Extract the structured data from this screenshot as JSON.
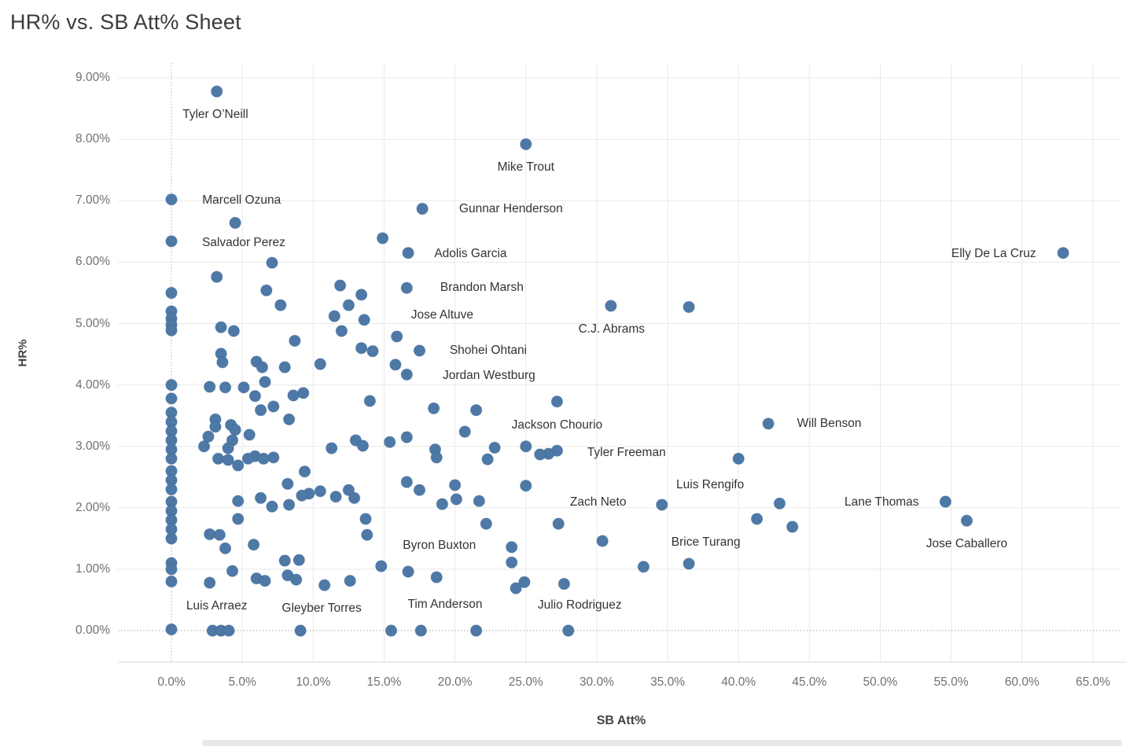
{
  "title": "HR% vs. SB Att% Sheet",
  "chart_data": {
    "type": "scatter",
    "title": "HR% vs. SB Att% Sheet",
    "xlabel": "SB Att%",
    "ylabel": "HR%",
    "xlim": [
      -3.8,
      66.9
    ],
    "ylim": [
      -0.55,
      9.25
    ],
    "grid": true,
    "marker_color": "#4e79a7",
    "marker_edge_color": "#2e5a87",
    "grid_color": "#e9e9e9",
    "zero_line_color": "#bcbcbc",
    "tick_text_color": "#717171",
    "label_text_color": "#333333",
    "x_ticks": [
      {
        "v": 0,
        "label": "0.0%"
      },
      {
        "v": 5,
        "label": "5.0%"
      },
      {
        "v": 10,
        "label": "10.0%"
      },
      {
        "v": 15,
        "label": "15.0%"
      },
      {
        "v": 20,
        "label": "20.0%"
      },
      {
        "v": 25,
        "label": "25.0%"
      },
      {
        "v": 30,
        "label": "30.0%"
      },
      {
        "v": 35,
        "label": "35.0%"
      },
      {
        "v": 40,
        "label": "40.0%"
      },
      {
        "v": 45,
        "label": "45.0%"
      },
      {
        "v": 50,
        "label": "50.0%"
      },
      {
        "v": 55,
        "label": "55.0%"
      },
      {
        "v": 60,
        "label": "60.0%"
      },
      {
        "v": 65,
        "label": "65.0%"
      }
    ],
    "y_ticks": [
      {
        "v": 0,
        "label": "0.00%"
      },
      {
        "v": 1,
        "label": "1.00%"
      },
      {
        "v": 2,
        "label": "2.00%"
      },
      {
        "v": 3,
        "label": "3.00%"
      },
      {
        "v": 4,
        "label": "4.00%"
      },
      {
        "v": 5,
        "label": "5.00%"
      },
      {
        "v": 6,
        "label": "6.00%"
      },
      {
        "v": 7,
        "label": "7.00%"
      },
      {
        "v": 8,
        "label": "8.00%"
      },
      {
        "v": 9,
        "label": "9.00%"
      }
    ],
    "points": [
      [
        0,
        7.02
      ],
      [
        0,
        6.34
      ],
      [
        0,
        5.5
      ],
      [
        0,
        5.2
      ],
      [
        0,
        5.08
      ],
      [
        0,
        4.98
      ],
      [
        0,
        4.89
      ],
      [
        0,
        4.0
      ],
      [
        0,
        3.78
      ],
      [
        0,
        3.55
      ],
      [
        0,
        3.4
      ],
      [
        0,
        3.25
      ],
      [
        0,
        3.1
      ],
      [
        0,
        2.95
      ],
      [
        0,
        2.8
      ],
      [
        0,
        2.6
      ],
      [
        0,
        2.45
      ],
      [
        0,
        2.3
      ],
      [
        0,
        2.1
      ],
      [
        0,
        1.95
      ],
      [
        0,
        1.8
      ],
      [
        0,
        1.65
      ],
      [
        0,
        1.5
      ],
      [
        0,
        1.1
      ],
      [
        0,
        1.0
      ],
      [
        0,
        0.8
      ],
      [
        0,
        0.02
      ],
      [
        3.2,
        8.78
      ],
      [
        25,
        7.92
      ],
      [
        17.7,
        6.87
      ],
      [
        4.5,
        6.64
      ],
      [
        14.9,
        6.39
      ],
      [
        16.7,
        6.15
      ],
      [
        62.9,
        6.15
      ],
      [
        7.1,
        5.99
      ],
      [
        3.2,
        5.76
      ],
      [
        11.9,
        5.62
      ],
      [
        16.6,
        5.58
      ],
      [
        6.7,
        5.54
      ],
      [
        13.4,
        5.47
      ],
      [
        7.7,
        5.3
      ],
      [
        12.5,
        5.3
      ],
      [
        31,
        5.29
      ],
      [
        36.5,
        5.27
      ],
      [
        11.5,
        5.12
      ],
      [
        13.6,
        5.06
      ],
      [
        3.5,
        4.94
      ],
      [
        4.4,
        4.88
      ],
      [
        12,
        4.88
      ],
      [
        15.9,
        4.79
      ],
      [
        8.7,
        4.72
      ],
      [
        13.4,
        4.6
      ],
      [
        17.5,
        4.56
      ],
      [
        14.2,
        4.55
      ],
      [
        3.5,
        4.51
      ],
      [
        6,
        4.38
      ],
      [
        3.6,
        4.37
      ],
      [
        10.5,
        4.34
      ],
      [
        15.8,
        4.33
      ],
      [
        6.4,
        4.29
      ],
      [
        8,
        4.29
      ],
      [
        16.6,
        4.17
      ],
      [
        6.6,
        4.05
      ],
      [
        2.7,
        3.97
      ],
      [
        3.8,
        3.96
      ],
      [
        5.1,
        3.96
      ],
      [
        9.3,
        3.87
      ],
      [
        8.6,
        3.83
      ],
      [
        5.9,
        3.82
      ],
      [
        14,
        3.74
      ],
      [
        27.2,
        3.73
      ],
      [
        7.2,
        3.65
      ],
      [
        18.5,
        3.62
      ],
      [
        21.5,
        3.59
      ],
      [
        6.3,
        3.59
      ],
      [
        3.1,
        3.44
      ],
      [
        8.3,
        3.44
      ],
      [
        42.1,
        3.37
      ],
      [
        4.2,
        3.35
      ],
      [
        3.1,
        3.32
      ],
      [
        4.5,
        3.27
      ],
      [
        20.7,
        3.24
      ],
      [
        5.5,
        3.19
      ],
      [
        2.6,
        3.16
      ],
      [
        16.6,
        3.15
      ],
      [
        4.3,
        3.1
      ],
      [
        13,
        3.1
      ],
      [
        15.4,
        3.07
      ],
      [
        13.5,
        3.01
      ],
      [
        2.3,
        3.0
      ],
      [
        25,
        3.0
      ],
      [
        22.8,
        2.98
      ],
      [
        4,
        2.97
      ],
      [
        11.3,
        2.97
      ],
      [
        18.6,
        2.95
      ],
      [
        27.2,
        2.93
      ],
      [
        26.6,
        2.88
      ],
      [
        26,
        2.87
      ],
      [
        5.9,
        2.84
      ],
      [
        18.7,
        2.82
      ],
      [
        7.2,
        2.82
      ],
      [
        3.3,
        2.8
      ],
      [
        5.4,
        2.8
      ],
      [
        6.5,
        2.8
      ],
      [
        40,
        2.8
      ],
      [
        22.3,
        2.79
      ],
      [
        4,
        2.78
      ],
      [
        4.7,
        2.69
      ],
      [
        9.4,
        2.59
      ],
      [
        16.6,
        2.42
      ],
      [
        8.2,
        2.39
      ],
      [
        20,
        2.37
      ],
      [
        25,
        2.36
      ],
      [
        17.5,
        2.29
      ],
      [
        12.5,
        2.29
      ],
      [
        10.5,
        2.27
      ],
      [
        9.7,
        2.23
      ],
      [
        9.2,
        2.2
      ],
      [
        11.6,
        2.18
      ],
      [
        6.3,
        2.16
      ],
      [
        12.9,
        2.16
      ],
      [
        20.1,
        2.14
      ],
      [
        4.7,
        2.11
      ],
      [
        21.7,
        2.11
      ],
      [
        54.6,
        2.1
      ],
      [
        42.9,
        2.07
      ],
      [
        19.1,
        2.06
      ],
      [
        34.6,
        2.05
      ],
      [
        8.3,
        2.05
      ],
      [
        7.1,
        2.02
      ],
      [
        13.7,
        1.82
      ],
      [
        4.7,
        1.82
      ],
      [
        41.3,
        1.82
      ],
      [
        56.1,
        1.79
      ],
      [
        22.2,
        1.74
      ],
      [
        27.3,
        1.74
      ],
      [
        43.8,
        1.69
      ],
      [
        2.7,
        1.57
      ],
      [
        3.4,
        1.56
      ],
      [
        13.8,
        1.56
      ],
      [
        30.4,
        1.46
      ],
      [
        5.8,
        1.4
      ],
      [
        24,
        1.36
      ],
      [
        3.8,
        1.34
      ],
      [
        9,
        1.15
      ],
      [
        8,
        1.14
      ],
      [
        24,
        1.11
      ],
      [
        36.5,
        1.09
      ],
      [
        14.8,
        1.05
      ],
      [
        33.3,
        1.04
      ],
      [
        4.3,
        0.97
      ],
      [
        16.7,
        0.96
      ],
      [
        8.2,
        0.9
      ],
      [
        18.7,
        0.87
      ],
      [
        6,
        0.85
      ],
      [
        8.8,
        0.83
      ],
      [
        6.6,
        0.81
      ],
      [
        12.6,
        0.81
      ],
      [
        24.9,
        0.79
      ],
      [
        2.7,
        0.78
      ],
      [
        27.7,
        0.76
      ],
      [
        10.8,
        0.74
      ],
      [
        24.3,
        0.69
      ],
      [
        2.9,
        0
      ],
      [
        3.5,
        0
      ],
      [
        4.05,
        0
      ],
      [
        9.1,
        0
      ],
      [
        15.5,
        0
      ],
      [
        17.6,
        0
      ],
      [
        21.5,
        0
      ],
      [
        28,
        0
      ]
    ],
    "annotations": [
      {
        "text": "Tyler O’Neill",
        "x": 3.1,
        "y": 8.4
      },
      {
        "text": "Mike Trout",
        "x": 25.0,
        "y": 7.54
      },
      {
        "text": "Marcell Ozuna",
        "x": 4.95,
        "y": 7.0
      },
      {
        "text": "Gunnar Henderson",
        "x": 23.95,
        "y": 6.86
      },
      {
        "text": "Salvador Perez",
        "x": 5.1,
        "y": 6.31
      },
      {
        "text": "Adolis Garcia",
        "x": 21.1,
        "y": 6.13
      },
      {
        "text": "Elly De La Cruz",
        "x": 58.0,
        "y": 6.13
      },
      {
        "text": "Brandon Marsh",
        "x": 21.9,
        "y": 5.58
      },
      {
        "text": "Jose Altuve",
        "x": 19.1,
        "y": 5.13
      },
      {
        "text": "C.J. Abrams",
        "x": 31.05,
        "y": 4.9
      },
      {
        "text": "Shohei Ohtani",
        "x": 22.35,
        "y": 4.56
      },
      {
        "text": "Jordan Westburg",
        "x": 22.4,
        "y": 4.15
      },
      {
        "text": "Jackson Chourio",
        "x": 27.2,
        "y": 3.34
      },
      {
        "text": "Will Benson",
        "x": 46.4,
        "y": 3.37
      },
      {
        "text": "Tyler Freeman",
        "x": 32.1,
        "y": 2.89
      },
      {
        "text": "Luis Rengifo",
        "x": 38.0,
        "y": 2.37
      },
      {
        "text": "Zach Neto",
        "x": 30.1,
        "y": 2.09
      },
      {
        "text": "Lane Thomas",
        "x": 50.1,
        "y": 2.09
      },
      {
        "text": "Byron Buxton",
        "x": 18.9,
        "y": 1.38
      },
      {
        "text": "Brice Turang",
        "x": 37.7,
        "y": 1.43
      },
      {
        "text": "Jose Caballero",
        "x": 56.1,
        "y": 1.41
      },
      {
        "text": "Luis Arraez",
        "x": 3.2,
        "y": 0.4
      },
      {
        "text": "Gleyber Torres",
        "x": 10.6,
        "y": 0.36
      },
      {
        "text": "Tim Anderson",
        "x": 19.3,
        "y": 0.42
      },
      {
        "text": "Julio Rodriguez",
        "x": 28.8,
        "y": 0.41
      }
    ]
  }
}
